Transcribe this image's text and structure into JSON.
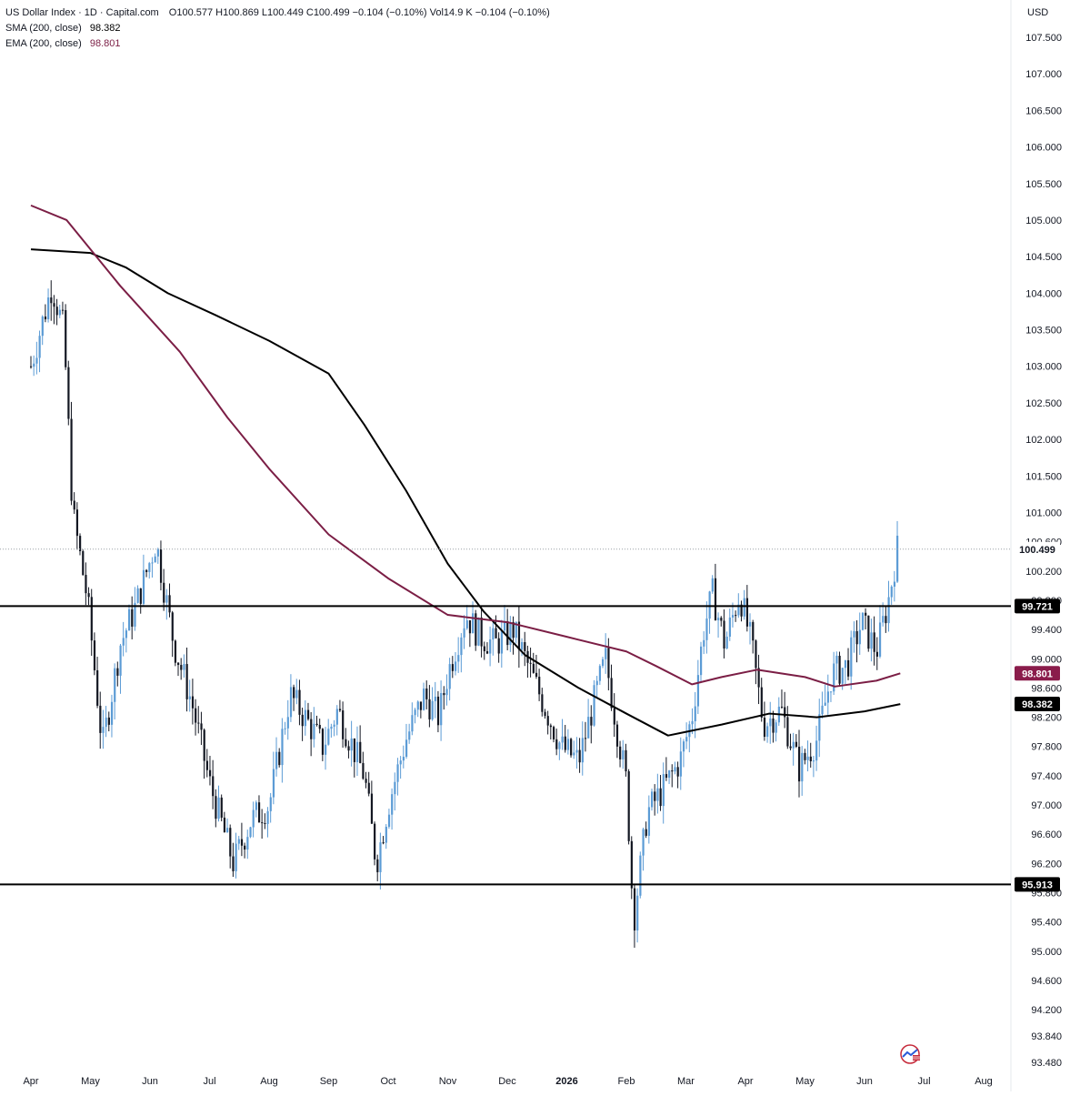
{
  "legend": {
    "title": "US Dollar Index · 1D · Capital.com",
    "ohlc": "O100.577  H100.869  L100.449  C100.499  −0.104 (−0.10%)  Vol14.9 K  −0.104 (−0.10%)",
    "sma_label": "SMA (200, close)",
    "sma_value": "98.382",
    "ema_label": "EMA (200, close)",
    "ema_value": "98.801"
  },
  "axis": {
    "currency": "USD"
  },
  "colors": {
    "candle": "#5b9bd5",
    "candle_dark": "#131722",
    "sma": "#000000",
    "ema": "#7b1e45",
    "level_line": "#000000",
    "label_bg_dark": "#000000",
    "label_bg_ema": "#8a1c4b"
  },
  "chart_data": {
    "type": "candlestick",
    "symbol": "US Dollar Index",
    "timeframe": "1D",
    "source": "Capital.com",
    "y_range": [
      93.3,
      107.8
    ],
    "y_ticks": [
      107.5,
      107.0,
      106.5,
      106.0,
      105.5,
      105.0,
      104.5,
      104.0,
      103.5,
      103.0,
      102.5,
      102.0,
      101.5,
      101.0,
      100.6,
      100.2,
      99.8,
      99.4,
      99.0,
      98.6,
      98.2,
      97.8,
      97.4,
      97.0,
      96.6,
      96.2,
      95.8,
      95.4,
      95.0,
      94.6,
      94.2,
      93.84,
      93.48
    ],
    "y_tick_labels": [
      "107.500",
      "107.000",
      "106.500",
      "106.000",
      "105.500",
      "105.000",
      "104.500",
      "104.000",
      "103.500",
      "103.000",
      "102.500",
      "102.000",
      "101.500",
      "101.000",
      "100.600",
      "100.200",
      "99.800",
      "99.400",
      "99.000",
      "98.600",
      "98.200",
      "97.800",
      "97.400",
      "97.000",
      "96.600",
      "96.200",
      "95.800",
      "95.400",
      "95.000",
      "94.600",
      "94.200",
      "93.840",
      "93.480"
    ],
    "x_labels": [
      "Apr",
      "May",
      "Jun",
      "Jul",
      "Aug",
      "Sep",
      "Oct",
      "Nov",
      "Dec",
      "2026",
      "Feb",
      "Mar",
      "Apr",
      "May",
      "Jun",
      "Jul",
      "Aug"
    ],
    "bold_x_label": "2026",
    "last_price": 100.499,
    "last_price_label": "100.499",
    "horizontal_levels": [
      {
        "value": 99.721,
        "label": "99.721"
      },
      {
        "value": 95.913,
        "label": "95.913"
      }
    ],
    "series": [
      {
        "name": "SMA (200, close)",
        "last": 98.382,
        "last_label": "98.382",
        "path": [
          [
            0,
            104.6
          ],
          [
            1,
            104.55
          ],
          [
            1.6,
            104.35
          ],
          [
            2.3,
            104.0
          ],
          [
            3.1,
            103.7
          ],
          [
            4.0,
            103.35
          ],
          [
            5.0,
            102.9
          ],
          [
            5.6,
            102.2
          ],
          [
            6.3,
            101.3
          ],
          [
            7.0,
            100.3
          ],
          [
            7.6,
            99.65
          ],
          [
            8.3,
            99.05
          ],
          [
            9.2,
            98.6
          ],
          [
            10.0,
            98.25
          ],
          [
            10.7,
            97.95
          ],
          [
            11.6,
            98.1
          ],
          [
            12.4,
            98.25
          ],
          [
            13.2,
            98.2
          ],
          [
            14.0,
            98.28
          ],
          [
            14.6,
            98.38
          ]
        ]
      },
      {
        "name": "EMA (200, close)",
        "last": 98.801,
        "last_label": "98.801",
        "path": [
          [
            0,
            105.2
          ],
          [
            0.6,
            105.0
          ],
          [
            1.5,
            104.1
          ],
          [
            2.5,
            103.2
          ],
          [
            3.3,
            102.3
          ],
          [
            4.0,
            101.6
          ],
          [
            5.0,
            100.7
          ],
          [
            6.0,
            100.1
          ],
          [
            7.0,
            99.6
          ],
          [
            8.0,
            99.5
          ],
          [
            9.0,
            99.3
          ],
          [
            10.0,
            99.1
          ],
          [
            10.5,
            98.9
          ],
          [
            11.1,
            98.65
          ],
          [
            11.6,
            98.75
          ],
          [
            12.2,
            98.85
          ],
          [
            13.0,
            98.75
          ],
          [
            13.5,
            98.62
          ],
          [
            14.2,
            98.7
          ],
          [
            14.6,
            98.8
          ]
        ]
      }
    ],
    "price_waypoints": [
      [
        0,
        103.0
      ],
      [
        0.35,
        104.1
      ],
      [
        0.55,
        103.5
      ],
      [
        0.7,
        101.0
      ],
      [
        0.95,
        99.8
      ],
      [
        1.2,
        97.8
      ],
      [
        1.5,
        99.2
      ],
      [
        1.75,
        99.7
      ],
      [
        2.1,
        100.6
      ],
      [
        2.4,
        99.2
      ],
      [
        2.7,
        98.4
      ],
      [
        3.0,
        97.3
      ],
      [
        3.4,
        96.2
      ],
      [
        3.7,
        96.8
      ],
      [
        4.0,
        97.0
      ],
      [
        4.35,
        98.5
      ],
      [
        4.6,
        98.2
      ],
      [
        4.9,
        97.8
      ],
      [
        5.15,
        98.3
      ],
      [
        5.6,
        97.4
      ],
      [
        5.8,
        96.2
      ],
      [
        6.0,
        97.0
      ],
      [
        6.3,
        97.9
      ],
      [
        6.6,
        98.5
      ],
      [
        6.85,
        98.2
      ],
      [
        7.0,
        98.8
      ],
      [
        7.3,
        99.6
      ],
      [
        7.55,
        99.3
      ],
      [
        7.8,
        99.2
      ],
      [
        8.1,
        99.4
      ],
      [
        8.3,
        99.0
      ],
      [
        8.6,
        98.4
      ],
      [
        8.9,
        97.8
      ],
      [
        9.2,
        97.6
      ],
      [
        9.45,
        98.4
      ],
      [
        9.65,
        99.0
      ],
      [
        9.85,
        98.0
      ],
      [
        10.0,
        97.3
      ],
      [
        10.12,
        95.4
      ],
      [
        10.35,
        96.9
      ],
      [
        10.6,
        97.2
      ],
      [
        10.9,
        97.6
      ],
      [
        11.1,
        98.2
      ],
      [
        11.3,
        99.4
      ],
      [
        11.45,
        99.9
      ],
      [
        11.65,
        99.2
      ],
      [
        11.9,
        99.9
      ],
      [
        12.1,
        99.2
      ],
      [
        12.3,
        98.1
      ],
      [
        12.6,
        98.3
      ],
      [
        12.9,
        97.5
      ],
      [
        13.2,
        97.9
      ],
      [
        13.45,
        98.8
      ],
      [
        13.7,
        98.9
      ],
      [
        13.95,
        99.5
      ],
      [
        14.2,
        99.1
      ],
      [
        14.4,
        99.8
      ],
      [
        14.55,
        100.5
      ]
    ],
    "x_axis_note": "x positions are in months from the Apr label (0 = Apr, 1 = May, … 16 = Aug next year)"
  },
  "logo": {
    "name": "tradingview-watermark-icon"
  }
}
